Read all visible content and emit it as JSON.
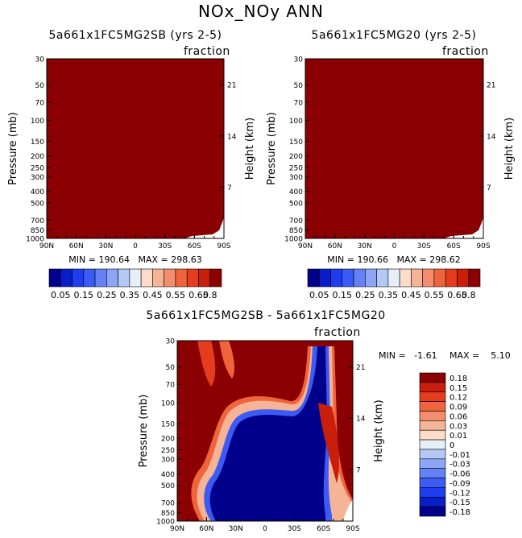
{
  "page_title": "NOx_NOy ANN",
  "chart_data": [
    {
      "type": "heatmap",
      "title": "5a661x1FC5MG2SB (yrs 2-5)",
      "units": "fraction",
      "ylabel": "Pressure (mb)",
      "ylabel_right": "Height (km)",
      "x_ticks": [
        "90N",
        "60N",
        "30N",
        "0",
        "30S",
        "60S",
        "90S"
      ],
      "y_ticks": [
        "30",
        "50",
        "70",
        "100",
        "150",
        "200",
        "250",
        "300",
        "400",
        "500",
        "700",
        "850",
        "1000"
      ],
      "y_ticks_right": [
        "21",
        "14",
        "7"
      ],
      "stats": "MIN = 190.64   MAX = 298.63",
      "fill": "saturated (all values above 0.8)",
      "colorbar_labels": [
        "0.05",
        "0.15",
        "0.25",
        "0.35",
        "0.45",
        "0.55",
        "0.65",
        "0.8"
      ],
      "colorbar_levels": [
        0,
        0.05,
        0.1,
        0.15,
        0.2,
        0.25,
        0.3,
        0.35,
        0.4,
        0.45,
        0.5,
        0.55,
        0.6,
        0.65,
        0.7,
        0.8
      ]
    },
    {
      "type": "heatmap",
      "title": "5a661x1FC5MG20 (yrs 2-5)",
      "units": "fraction",
      "ylabel": "Pressure (mb)",
      "ylabel_right": "Height (km)",
      "x_ticks": [
        "90N",
        "60N",
        "30N",
        "0",
        "30S",
        "60S",
        "90S"
      ],
      "y_ticks": [
        "30",
        "50",
        "70",
        "100",
        "150",
        "200",
        "250",
        "300",
        "400",
        "500",
        "700",
        "850",
        "1000"
      ],
      "y_ticks_right": [
        "21",
        "14",
        "7"
      ],
      "stats": "MIN = 190.66   MAX = 298.62",
      "fill": "saturated (all values above 0.8)",
      "colorbar_labels": [
        "0.05",
        "0.15",
        "0.25",
        "0.35",
        "0.45",
        "0.55",
        "0.65",
        "0.8"
      ],
      "colorbar_levels": [
        0,
        0.05,
        0.1,
        0.15,
        0.2,
        0.25,
        0.3,
        0.35,
        0.4,
        0.45,
        0.5,
        0.55,
        0.6,
        0.65,
        0.7,
        0.8
      ]
    },
    {
      "type": "heatmap",
      "title": "5a661x1FC5MG2SB - 5a661x1FC5MG20",
      "units": "fraction",
      "ylabel": "Pressure (mb)",
      "ylabel_right": "Height (km)",
      "x_ticks": [
        "90N",
        "60N",
        "30N",
        "0",
        "30S",
        "60S",
        "90S"
      ],
      "y_ticks": [
        "30",
        "50",
        "70",
        "100",
        "150",
        "200",
        "250",
        "300",
        "400",
        "500",
        "700",
        "850",
        "1000"
      ],
      "y_ticks_right": [
        "21",
        "14",
        "7"
      ],
      "stats": {
        "min": "MIN =   -1.61",
        "max": "MAX =    5.10"
      },
      "colorbar_labels": [
        "0.18",
        "0.15",
        "0.12",
        "0.09",
        "0.06",
        "0.03",
        "0.01",
        "0",
        "-0.01",
        "-0.03",
        "-0.06",
        "-0.09",
        "-0.12",
        "-0.15",
        "-0.18"
      ],
      "description": "Difference field: large positive (red) region in upper northern stratosphere and southern polar latitudes; large negative (blue) region in tropical/mid-latitude troposphere and southern high-latitude stratosphere"
    }
  ],
  "colors": {
    "top_fill": "#8b0000",
    "diverging": [
      "#00008b",
      "#0a1ec8",
      "#1e3cf0",
      "#3c5af5",
      "#6482f5",
      "#8ca5f5",
      "#b4c8f5",
      "#e6eef8",
      "#fadcc8",
      "#f5b496",
      "#f58c6e",
      "#f0643c",
      "#e63c1e",
      "#c81e0a",
      "#8b0000"
    ]
  }
}
